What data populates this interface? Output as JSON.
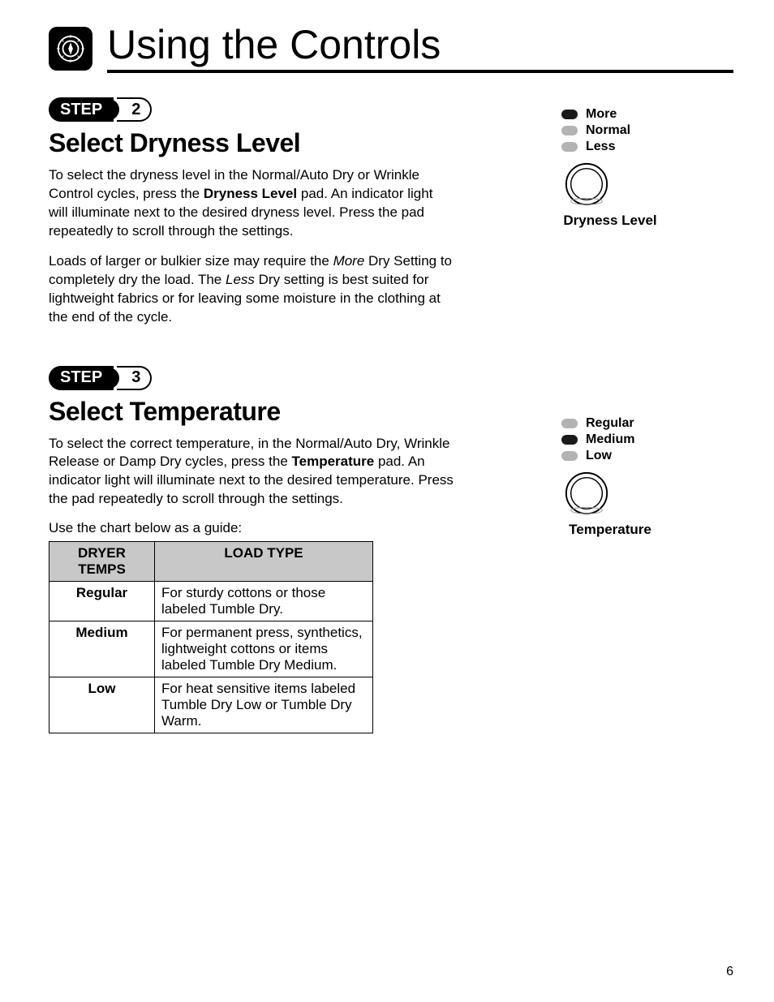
{
  "page": {
    "title": "Using the Controls",
    "number": "6"
  },
  "step2": {
    "step_label": "STEP",
    "step_num": "2",
    "heading": "Select Dryness Level",
    "p1a": "To select the dryness level in the Normal/Auto Dry or Wrinkle Control cycles, press the ",
    "p1_bold": "Dryness Level",
    "p1b": " pad. An indicator light will illuminate next to the desired dryness level.  Press the pad repeatedly to scroll through the settings.",
    "p2a": "Loads of larger or bulkier size may require the ",
    "p2_i1": "More",
    "p2b": " Dry Setting to completely dry the load. The ",
    "p2_i2": "Less",
    "p2c": " Dry setting is best suited for lightweight fabrics or for leaving some moisture in the clothing at the end of the cycle.",
    "control": {
      "options": [
        {
          "label": "More",
          "on": true
        },
        {
          "label": "Normal",
          "on": false
        },
        {
          "label": "Less",
          "on": false
        }
      ],
      "caption": "Dryness Level"
    }
  },
  "step3": {
    "step_label": "STEP",
    "step_num": "3",
    "heading": "Select Temperature",
    "p1a": "To select the correct temperature, in the Normal/Auto Dry, Wrinkle Release or Damp Dry cycles, press the ",
    "p1_bold": "Temperature",
    "p1b": " pad. An indicator light will illuminate next to the desired temperature. Press the pad repeatedly to scroll through the settings.",
    "guide": "Use the chart below as a guide:",
    "table": {
      "col1": "DRYER TEMPS",
      "col2": "LOAD TYPE",
      "rows": [
        {
          "name": "Regular",
          "desc": "For sturdy cottons or those labeled Tumble Dry."
        },
        {
          "name": "Medium",
          "desc": "For permanent press, synthetics, lightweight cottons or items labeled Tumble Dry Medium."
        },
        {
          "name": "Low",
          "desc": "For heat sensitive items labeled Tumble Dry Low or Tumble Dry Warm."
        }
      ]
    },
    "control": {
      "options": [
        {
          "label": "Regular",
          "on": false
        },
        {
          "label": "Medium",
          "on": true
        },
        {
          "label": "Low",
          "on": false
        }
      ],
      "caption": "Temperature"
    }
  }
}
